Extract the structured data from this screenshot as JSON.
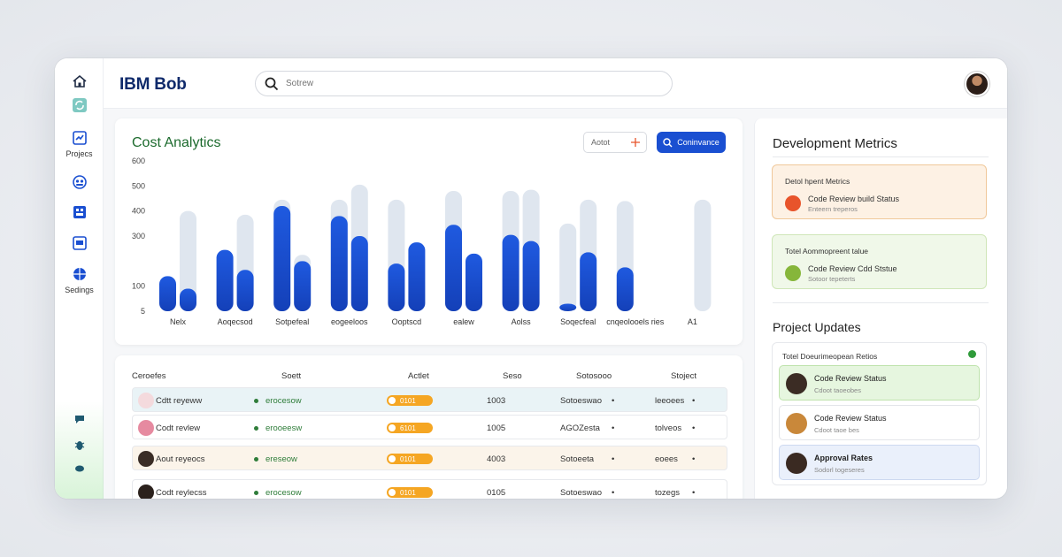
{
  "app": {
    "brand": "IBM Bob"
  },
  "search": {
    "placeholder": "Sotrew"
  },
  "sidebar": {
    "items": [
      {
        "icon": "home-icon",
        "label": ""
      },
      {
        "icon": "refresh-icon",
        "label": ""
      },
      {
        "icon": "chart-icon",
        "label": "Projecs"
      },
      {
        "icon": "team-icon",
        "label": ""
      },
      {
        "icon": "grid-icon",
        "label": ""
      },
      {
        "icon": "window-icon",
        "label": ""
      },
      {
        "icon": "globe-icon",
        "label": "Sedings"
      }
    ]
  },
  "cost": {
    "title": "Cost Analytics",
    "filter_label": "Aotot",
    "button_label": "Coninvance"
  },
  "chart_data": {
    "type": "bar",
    "categories": [
      "Nelx",
      "Aoqecsod",
      "Sotpefeal",
      "eogeeloos",
      "Ooptscd",
      "ealew",
      "Aolss",
      "Soqecfeal",
      "cnqeolooels ries",
      "A1"
    ],
    "ylim": [
      0,
      600
    ],
    "yticks": [
      "5",
      "100",
      "300",
      "400",
      "500",
      "600"
    ],
    "series": [
      {
        "values": [
          140,
          245,
          420,
          380,
          190,
          345,
          305,
          30,
          175,
          0
        ]
      },
      {
        "values": [
          90,
          165,
          200,
          300,
          275,
          230,
          280,
          235,
          0,
          0
        ]
      }
    ],
    "background_values": [
      [
        0,
        0,
        445,
        445,
        445,
        480,
        480,
        350,
        440,
        0
      ],
      [
        400,
        385,
        225,
        505,
        0,
        0,
        485,
        445,
        0,
        445
      ]
    ],
    "colors": {
      "bar": "#1a4fd1",
      "ghost": "#dfe6ef"
    }
  },
  "table": {
    "headers": [
      "Ceroefes",
      "Soett",
      "Actlet",
      "Seso",
      "Sotosooo",
      "Stoject"
    ],
    "rows": [
      {
        "name": "Cdtt reyeww",
        "status": "erocesow",
        "amount": "0101",
        "score": "1003",
        "ref": "Sotoeswao",
        "proj": "leeoees",
        "tint": "#e9f3f6",
        "avatar": "#f4dadd"
      },
      {
        "name": "Codt revlew",
        "status": "erooeesw",
        "amount": "6101",
        "score": "1005",
        "ref": "AGOZesta",
        "proj": "tolveos",
        "tint": "#ffffff",
        "avatar": "#e68aa0"
      },
      {
        "name": "Aout reyeocs",
        "status": "ereseow",
        "amount": "0101",
        "score": "4003",
        "ref": "Sotoeeta",
        "proj": "eoees",
        "tint": "#fbf4ea",
        "avatar": "#3a2d26"
      },
      {
        "name": "Codt reylecss",
        "status": "erocesow",
        "amount": "0101",
        "score": "0105",
        "ref": "Sotoeswao",
        "proj": "tozegs",
        "tint": "#ffffff",
        "avatar": "#2b211c"
      }
    ]
  },
  "dev": {
    "title": "Development Metrics",
    "cards": [
      {
        "head": "Detol hpent Metrics",
        "line1": "Code Review build Status",
        "line2": "Enteern treperos",
        "bg": "#fdf1e4",
        "border": "#f0c89a",
        "icon": "#e8542b"
      },
      {
        "head": "Totel Aommopreent talue",
        "line1": "Code Review Cdd Ststue",
        "line2": "Sotoor tepeterts",
        "bg": "#f0f8e9",
        "border": "#cfe6b8",
        "icon": "#86b63a"
      }
    ]
  },
  "updates": {
    "title": "Project Updates",
    "head": "Totel Doeurimeopean Retios",
    "items": [
      {
        "title": "Code Review Status",
        "sub": "Cdoot taoeobes",
        "bg": "#e6f6df",
        "border": "#bfe3ad",
        "avatar": "#3b2c24"
      },
      {
        "title": "Code Review Status",
        "sub": "Cdoot taoe bes",
        "bg": "#ffffff",
        "border": "#e3e5e9",
        "avatar": "#c9883a"
      },
      {
        "title": "Approval Rates",
        "sub": "Sodorl togeseres",
        "bg": "#eaf0fb",
        "border": "#cdd9f0",
        "avatar": "#3a2a22"
      }
    ]
  }
}
